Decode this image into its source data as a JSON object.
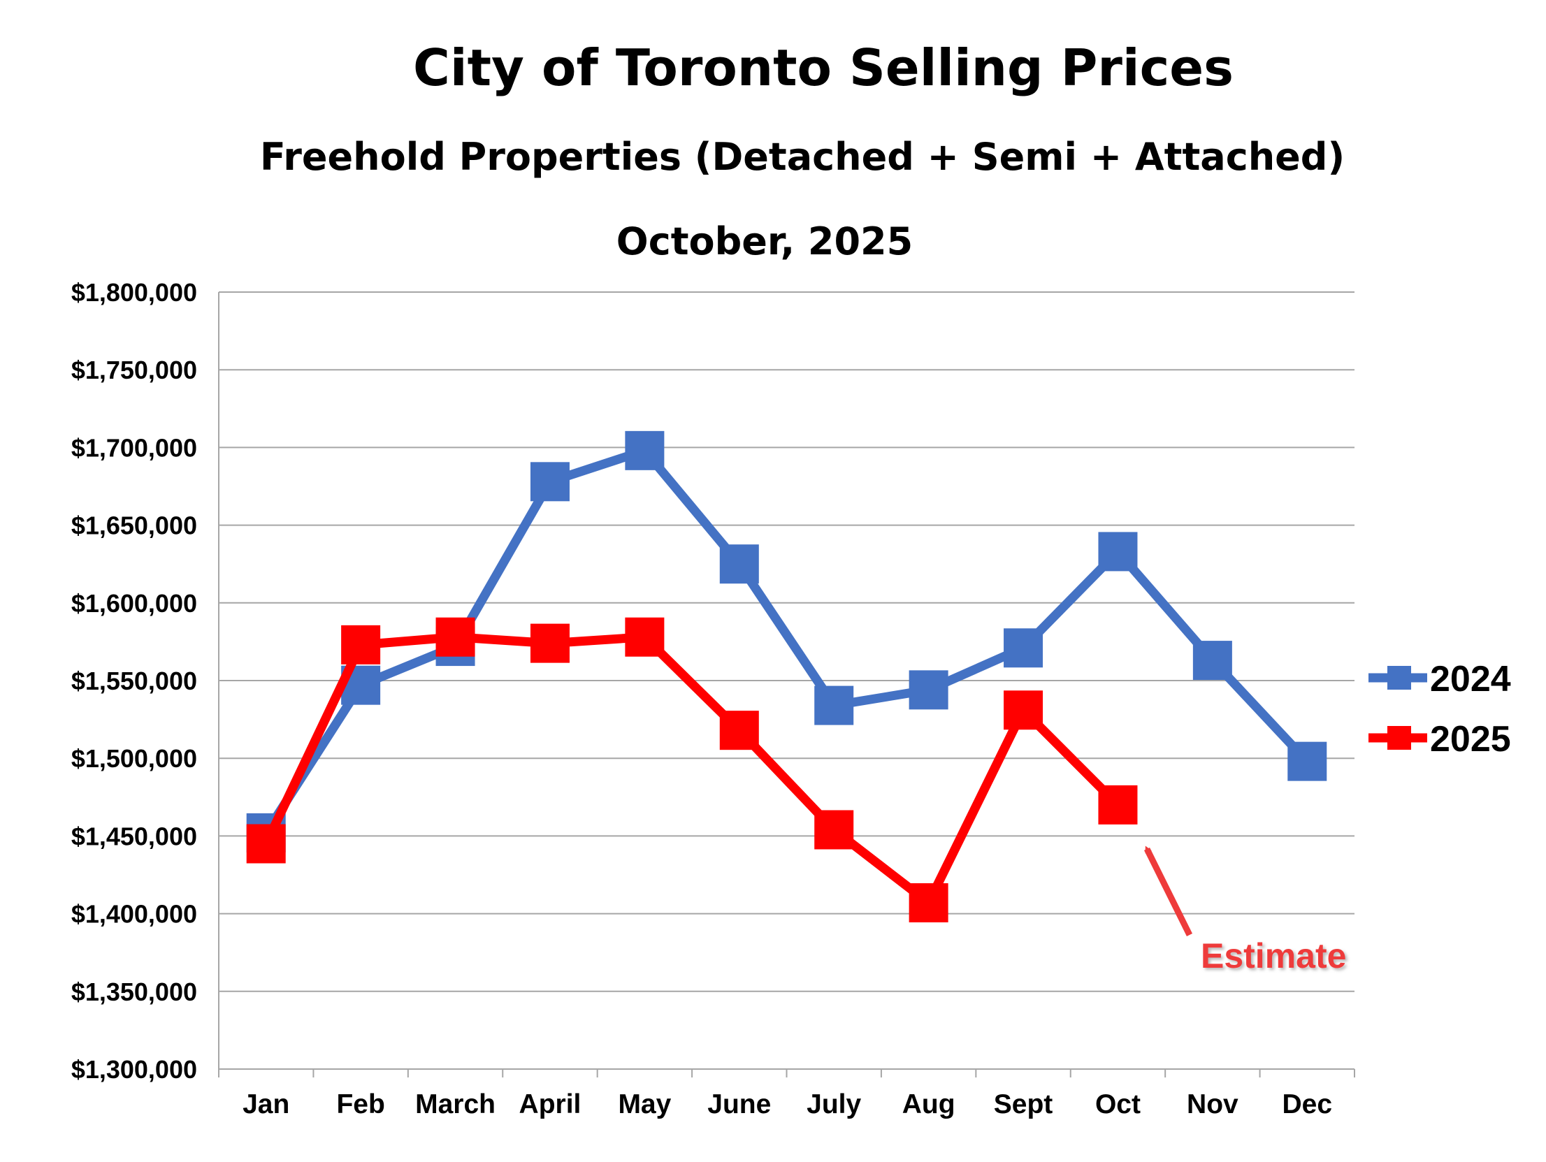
{
  "chart_data": {
    "type": "line",
    "title": "City of Toronto Selling Prices",
    "subtitle": "Freehold Properties (Detached + Semi + Attached)",
    "subtitle2": "October, 2025",
    "categories": [
      "Jan",
      "Feb",
      "March",
      "April",
      "May",
      "June",
      "July",
      "Aug",
      "Sept",
      "Oct",
      "Nov",
      "Dec"
    ],
    "ylim": [
      1300000,
      1800000
    ],
    "ytick_step": 50000,
    "yticks": [
      "$1,300,000",
      "$1,350,000",
      "$1,400,000",
      "$1,450,000",
      "$1,500,000",
      "$1,550,000",
      "$1,600,000",
      "$1,650,000",
      "$1,700,000",
      "$1,750,000",
      "$1,800,000"
    ],
    "grid": true,
    "legend_position": "right",
    "series": [
      {
        "name": "2024",
        "color": "#4472c4",
        "values": [
          1452000,
          1547000,
          1572000,
          1678000,
          1698000,
          1625000,
          1534000,
          1544000,
          1571000,
          1633000,
          1563000,
          1498000
        ]
      },
      {
        "name": "2025",
        "color": "#ff0000",
        "values": [
          1445000,
          1573000,
          1578000,
          1574000,
          1578000,
          1518000,
          1454000,
          1407000,
          1531000,
          1470000,
          null,
          null
        ]
      }
    ],
    "annotation": {
      "text": "Estimate",
      "points_to": "Oct",
      "series": "2025",
      "color": "#ee3b3b"
    }
  }
}
